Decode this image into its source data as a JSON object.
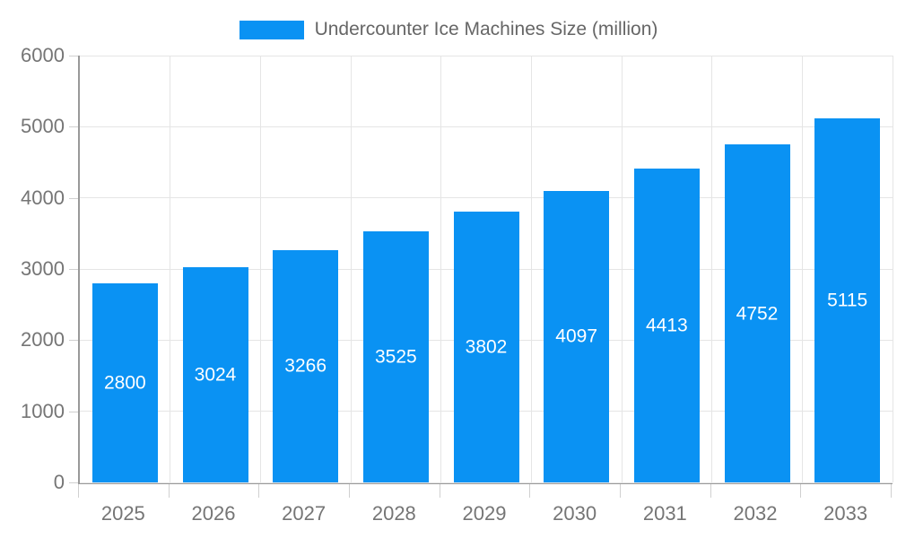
{
  "chart_data": {
    "type": "bar",
    "title": "",
    "categories": [
      "2025",
      "2026",
      "2027",
      "2028",
      "2029",
      "2030",
      "2031",
      "2032",
      "2033"
    ],
    "series": [
      {
        "name": "Undercounter Ice Machines Size (million)",
        "values": [
          2800,
          3024,
          3266,
          3525,
          3802,
          4097,
          4413,
          4752,
          5115
        ]
      }
    ],
    "xlabel": "",
    "ylabel": "",
    "ylim": [
      0,
      6000
    ],
    "yticks": [
      0,
      1000,
      2000,
      3000,
      4000,
      5000,
      6000
    ],
    "grid": "on",
    "legend_position": "top-center",
    "value_labels": "inside-bar-centered",
    "colors": {
      "bar": "#0a92f3",
      "value_label_text": "#ffffff",
      "grid_line": "#e5e5e5",
      "axis_line": "#999999",
      "tick_mark": "#d0d0d0",
      "axis_text": "#757575",
      "legend_text": "#666666",
      "background": "#ffffff"
    }
  }
}
